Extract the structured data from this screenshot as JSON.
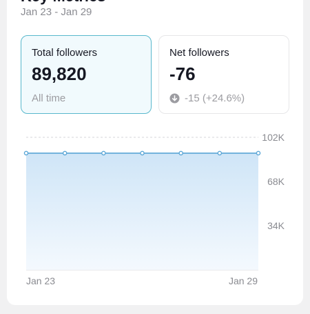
{
  "header": {
    "title": "Key Metrics",
    "date_range": "Jan 23 - Jan 29"
  },
  "metrics": [
    {
      "label": "Total followers",
      "value": "89,820",
      "subtext": "All time",
      "selected": true
    },
    {
      "label": "Net followers",
      "value": "-76",
      "change": "-15 (+24.6%)",
      "change_icon": "arrow-down-circle-icon",
      "selected": false
    }
  ],
  "colors": {
    "accent": "#58b8cc",
    "line": "#5aa6d6",
    "area_top": "#cfe5f7",
    "area_bottom": "#f4f9fe",
    "text_primary": "#161823",
    "text_secondary": "#8a8b91"
  },
  "chart_data": {
    "type": "area",
    "x": [
      "Jan 23",
      "Jan 24",
      "Jan 25",
      "Jan 26",
      "Jan 27",
      "Jan 28",
      "Jan 29"
    ],
    "x_tick_labels": [
      "Jan 23",
      "Jan 29"
    ],
    "series": [
      {
        "values": [
          89820,
          89820,
          89820,
          89820,
          89820,
          89820,
          89820
        ]
      }
    ],
    "ylim": [
      0,
      102000
    ],
    "y_ticks": [
      34000,
      68000,
      102000
    ],
    "y_tick_labels": [
      "34K",
      "68K",
      "102K"
    ],
    "grid": true,
    "y_axis_position": "right"
  }
}
